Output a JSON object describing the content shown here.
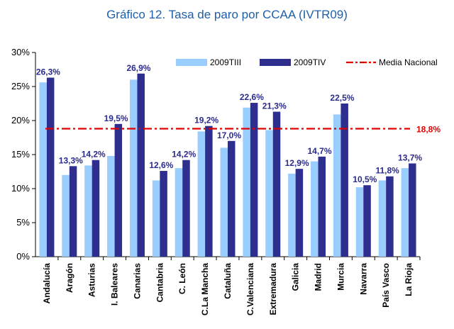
{
  "chart_data": {
    "type": "bar",
    "title": "Gráfico 12. Tasa de paro por CCAA (IVTR09)",
    "categories": [
      "Andalucía",
      "Aragón",
      "Asturias",
      "I. Baleares",
      "Canarias",
      "Cantabria",
      "C. León",
      "C.La Mancha",
      "Cataluña",
      "C.Valenciana",
      "Extremadura",
      "Galicia",
      "Madrid",
      "Murcia",
      "Navarra",
      "País Vasco",
      "La Rioja"
    ],
    "series": [
      {
        "name": "2009TIII",
        "color": "#99ccff",
        "values": [
          25.6,
          12.0,
          13.4,
          14.8,
          26.0,
          11.2,
          13.0,
          18.4,
          16.0,
          21.9,
          18.6,
          12.2,
          14.0,
          20.9,
          10.2,
          11.2,
          13.0
        ]
      },
      {
        "name": "2009TIV",
        "color": "#2e2e8f",
        "values": [
          26.3,
          13.3,
          14.2,
          19.5,
          26.9,
          12.6,
          14.2,
          19.2,
          17.0,
          22.6,
          21.3,
          12.9,
          14.7,
          22.5,
          10.5,
          11.8,
          13.7
        ]
      }
    ],
    "data_labels": [
      "26,3%",
      "13,3%",
      "14,2%",
      "19,5%",
      "26,9%",
      "12,6%",
      "14,2%",
      "19,2%",
      "17,0%",
      "22,6%",
      "21,3%",
      "12,9%",
      "14,7%",
      "22,5%",
      "10,5%",
      "11,8%",
      "13,7%"
    ],
    "reference_line": {
      "name": "Media Nacional",
      "value": 18.8,
      "label": "18,8%",
      "color": "#e00000"
    },
    "ylim": [
      0,
      30
    ],
    "yticks": [
      0,
      5,
      10,
      15,
      20,
      25,
      30
    ],
    "ytick_labels": [
      "0%",
      "5%",
      "10%",
      "15%",
      "20%",
      "25%",
      "30%"
    ],
    "xlabel": "",
    "ylabel": "",
    "grid": false,
    "legend_position": "top-right"
  }
}
